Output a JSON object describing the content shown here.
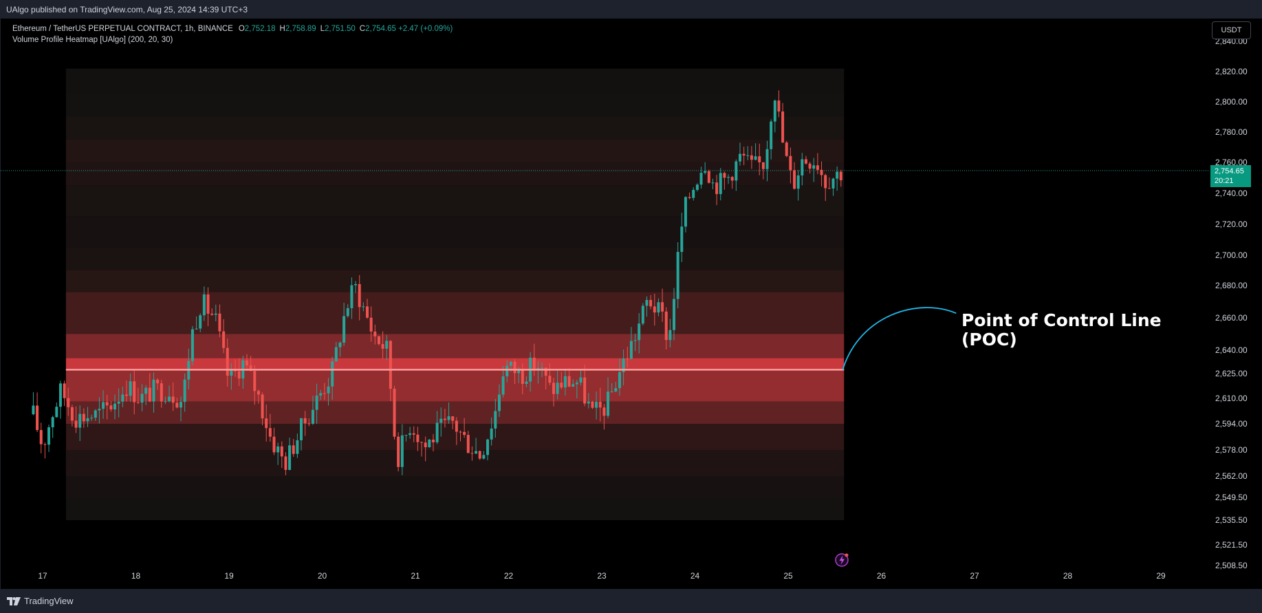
{
  "header": {
    "published_by": "UAlgo published on TradingView.com, Aug 25, 2024 14:39 UTC+3"
  },
  "legend": {
    "symbol": "Ethereum / TetherUS PERPETUAL CONTRACT, 1h, BINANCE",
    "o_label": "O",
    "o_value": "2,752.18",
    "h_label": "H",
    "h_value": "2,758.89",
    "l_label": "L",
    "l_value": "2,751.50",
    "c_label": "C",
    "c_value": "2,754.65 +2.47 (+0.09%)",
    "indicator": "Volume Profile Heatmap [UAlgo] (200, 20, 30)"
  },
  "currency_button": "USDT",
  "last_price": {
    "price": "2,754.65",
    "countdown": "20:21"
  },
  "annotation": {
    "line1": "Point of Control Line",
    "line2": "(POC)"
  },
  "footer": {
    "brand": "TradingView"
  },
  "colors": {
    "up": "#26a69a",
    "down": "#ef5350",
    "poc_line": "#ff9c9c",
    "arrow": "#22b8e8",
    "price_badge": "#089981",
    "background": "#000000",
    "axis_text": "#d1d4dc"
  },
  "chart_data": {
    "type": "candlestick",
    "symbol": "ETHUSDT.P",
    "interval": "1h",
    "x_ticks": [
      "17",
      "18",
      "19",
      "20",
      "21",
      "22",
      "23",
      "24",
      "25",
      "26",
      "27",
      "28",
      "29"
    ],
    "y_ticks": [
      2508.5,
      2521.5,
      2535.5,
      2549.5,
      2562.0,
      2578.0,
      2594.0,
      2610.0,
      2625.0,
      2640.0,
      2660.0,
      2680.0,
      2700.0,
      2720.0,
      2740.0,
      2760.0,
      2780.0,
      2800.0,
      2820.0,
      2840.0
    ],
    "y_tick_labels": [
      "2,508.50",
      "2,521.50",
      "2,535.50",
      "2,549.50",
      "2,562.00",
      "2,578.00",
      "2,594.00",
      "2,610.00",
      "2,625.00",
      "2,640.00",
      "2,660.00",
      "2,680.00",
      "2,700.00",
      "2,720.00",
      "2,740.00",
      "2,760.00",
      "2,780.00",
      "2,800.00",
      "2,820.00",
      "2,840.00"
    ],
    "last_price": 2754.65,
    "poc_price": 2627.5,
    "heatmap_x_range": [
      "17.25",
      "25.6"
    ],
    "heatmap_levels": [
      {
        "low": 2535.5,
        "high": 2549.5,
        "intensity": 0.04
      },
      {
        "low": 2549.5,
        "high": 2562.0,
        "intensity": 0.06
      },
      {
        "low": 2562.0,
        "high": 2578.0,
        "intensity": 0.1
      },
      {
        "low": 2578.0,
        "high": 2594.0,
        "intensity": 0.18
      },
      {
        "low": 2594.0,
        "high": 2608.0,
        "intensity": 0.45
      },
      {
        "low": 2608.0,
        "high": 2627.5,
        "intensity": 0.72
      },
      {
        "low": 2627.5,
        "high": 2635.0,
        "intensity": 1.0
      },
      {
        "low": 2635.0,
        "high": 2650.0,
        "intensity": 0.6
      },
      {
        "low": 2650.0,
        "high": 2676.0,
        "intensity": 0.3
      },
      {
        "low": 2676.0,
        "high": 2690.0,
        "intensity": 0.14
      },
      {
        "low": 2690.0,
        "high": 2705.0,
        "intensity": 0.08
      },
      {
        "low": 2705.0,
        "high": 2725.0,
        "intensity": 0.06
      },
      {
        "low": 2725.0,
        "high": 2745.0,
        "intensity": 0.07
      },
      {
        "low": 2745.0,
        "high": 2760.0,
        "intensity": 0.1
      },
      {
        "low": 2760.0,
        "high": 2775.0,
        "intensity": 0.12
      },
      {
        "low": 2775.0,
        "high": 2790.0,
        "intensity": 0.07
      },
      {
        "low": 2790.0,
        "high": 2805.0,
        "intensity": 0.04
      },
      {
        "low": 2805.0,
        "high": 2822.0,
        "intensity": 0.03
      }
    ],
    "close_path": [
      [
        16.9,
        2600
      ],
      [
        17.0,
        2580
      ],
      [
        17.1,
        2600
      ],
      [
        17.2,
        2615
      ],
      [
        17.35,
        2598
      ],
      [
        17.6,
        2600
      ],
      [
        17.75,
        2607
      ],
      [
        17.9,
        2618
      ],
      [
        18.05,
        2610
      ],
      [
        18.2,
        2615
      ],
      [
        18.35,
        2615
      ],
      [
        18.5,
        2608
      ],
      [
        18.6,
        2650
      ],
      [
        18.7,
        2670
      ],
      [
        18.85,
        2660
      ],
      [
        19.0,
        2620
      ],
      [
        19.15,
        2632
      ],
      [
        19.3,
        2614
      ],
      [
        19.45,
        2585
      ],
      [
        19.6,
        2570
      ],
      [
        19.75,
        2588
      ],
      [
        19.9,
        2605
      ],
      [
        20.1,
        2625
      ],
      [
        20.25,
        2665
      ],
      [
        20.35,
        2680
      ],
      [
        20.55,
        2650
      ],
      [
        20.7,
        2640
      ],
      [
        20.8,
        2572
      ],
      [
        20.95,
        2595
      ],
      [
        21.1,
        2580
      ],
      [
        21.25,
        2590
      ],
      [
        21.4,
        2595
      ],
      [
        21.55,
        2583
      ],
      [
        21.7,
        2575
      ],
      [
        21.85,
        2600
      ],
      [
        21.95,
        2630
      ],
      [
        22.15,
        2625
      ],
      [
        22.3,
        2632
      ],
      [
        22.45,
        2615
      ],
      [
        22.6,
        2620
      ],
      [
        22.75,
        2620
      ],
      [
        22.9,
        2600
      ],
      [
        23.05,
        2605
      ],
      [
        23.2,
        2628
      ],
      [
        23.35,
        2648
      ],
      [
        23.5,
        2672
      ],
      [
        23.65,
        2660
      ],
      [
        23.72,
        2645
      ],
      [
        23.82,
        2700
      ],
      [
        23.88,
        2728
      ],
      [
        23.95,
        2740
      ],
      [
        24.1,
        2762
      ],
      [
        24.2,
        2745
      ],
      [
        24.35,
        2750
      ],
      [
        24.5,
        2765
      ],
      [
        24.6,
        2757
      ],
      [
        24.75,
        2760
      ],
      [
        24.85,
        2810
      ],
      [
        24.95,
        2770
      ],
      [
        25.05,
        2745
      ],
      [
        25.15,
        2762
      ],
      [
        25.3,
        2762
      ],
      [
        25.4,
        2748
      ],
      [
        25.5,
        2752
      ],
      [
        25.6,
        2754.65
      ]
    ]
  }
}
